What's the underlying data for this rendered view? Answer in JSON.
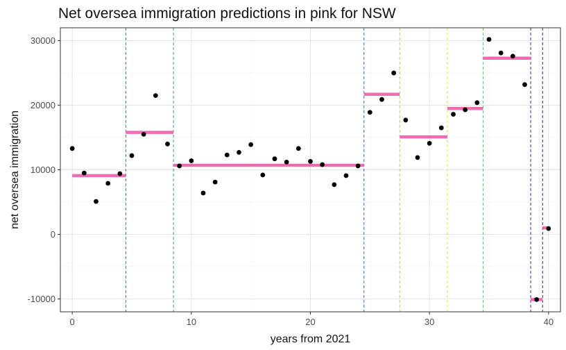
{
  "chart_data": {
    "type": "scatter",
    "title": "Net oversea immigration predictions in pink for NSW",
    "xlabel": "years from 2021",
    "ylabel": "net oversea immigration",
    "xlim": [
      -1,
      41
    ],
    "ylim": [
      -12000,
      32000
    ],
    "x_ticks": [
      0,
      10,
      20,
      30,
      40
    ],
    "x_tick_labels": [
      "0",
      "10",
      "20",
      "30",
      "40"
    ],
    "y_ticks": [
      -10000,
      0,
      10000,
      20000,
      30000
    ],
    "y_tick_labels": [
      "-10000",
      "0",
      "10000",
      "20000",
      "30000"
    ],
    "grid": true,
    "legend": "none",
    "points": {
      "color": "#000000",
      "x": [
        0,
        1,
        2,
        3,
        4,
        5,
        6,
        7,
        8,
        9,
        10,
        11,
        12,
        13,
        14,
        15,
        16,
        17,
        18,
        19,
        20,
        21,
        22,
        23,
        24,
        25,
        26,
        27,
        28,
        29,
        30,
        31,
        32,
        33,
        34,
        35,
        36,
        37,
        38,
        39,
        40
      ],
      "y": [
        13300,
        9500,
        5100,
        7900,
        9400,
        12200,
        15500,
        21500,
        14000,
        10600,
        11400,
        6400,
        8100,
        12300,
        12700,
        13900,
        9200,
        11700,
        11200,
        13300,
        11300,
        10800,
        7700,
        9100,
        10600,
        18900,
        20900,
        25000,
        17700,
        11900,
        14100,
        16500,
        18600,
        19300,
        20400,
        30200,
        28100,
        27600,
        23200,
        -10100,
        900
      ]
    },
    "predictions": {
      "color": "#f06bb0",
      "segments": [
        {
          "x0": 0,
          "x1": 4.5,
          "y": 9100
        },
        {
          "x0": 4.5,
          "x1": 8.5,
          "y": 15800
        },
        {
          "x0": 8.5,
          "x1": 24.5,
          "y": 10700
        },
        {
          "x0": 24.5,
          "x1": 27.5,
          "y": 21700
        },
        {
          "x0": 27.5,
          "x1": 31.5,
          "y": 15100
        },
        {
          "x0": 31.5,
          "x1": 34.5,
          "y": 19500
        },
        {
          "x0": 34.5,
          "x1": 38.5,
          "y": 27300
        },
        {
          "x0": 38.5,
          "x1": 39.5,
          "y": -10100
        },
        {
          "x0": 39.5,
          "x1": 40,
          "y": 1000
        }
      ]
    },
    "breakpoints": [
      {
        "x": 4.5,
        "color": "#3b6fb6"
      },
      {
        "x": 8.5,
        "color": "#2a9d8f"
      },
      {
        "x": 24.5,
        "color": "#3b6fb6"
      },
      {
        "x": 27.5,
        "color": "#b5c94a"
      },
      {
        "x": 31.5,
        "color": "#f1d54a"
      },
      {
        "x": 34.5,
        "color": "#5bbf6a"
      },
      {
        "x": 38.5,
        "color": "#5a1a78"
      },
      {
        "x": 39.5,
        "color": "#3a1a6e"
      }
    ]
  }
}
